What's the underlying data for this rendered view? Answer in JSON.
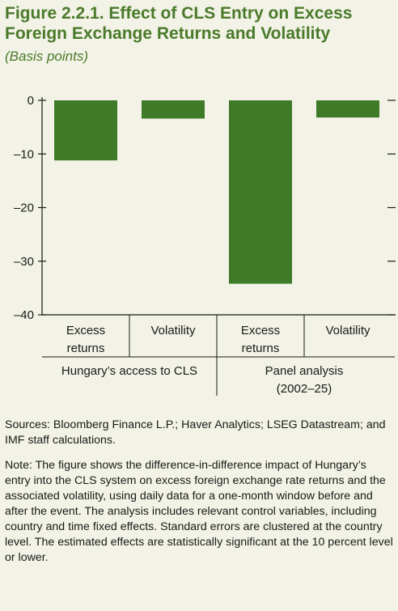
{
  "figure": {
    "title": "Figure 2.2.1. Effect of CLS Entry on Excess Foreign Exchange Returns and Volatility",
    "subtitle": "(Basis points)"
  },
  "chart_data": {
    "type": "bar",
    "categories": [
      "Excess returns",
      "Volatility",
      "Excess returns",
      "Volatility"
    ],
    "groups": [
      {
        "label": "Hungary’s access to CLS",
        "categories": [
          0,
          1
        ]
      },
      {
        "label": "Panel analysis (2002–25)",
        "categories": [
          2,
          3
        ]
      }
    ],
    "values": [
      -11.2,
      -3.4,
      -34.2,
      -3.2
    ],
    "ylim": [
      -40,
      0
    ],
    "yticks": [
      0,
      -10,
      -20,
      -30,
      -40
    ],
    "ytick_labels": [
      "0",
      "–10",
      "–20",
      "–30",
      "–40"
    ],
    "bar_color": "#3e7a27"
  },
  "notes": {
    "sources": "Sources: Bloomberg Finance L.P.; Haver Analytics; LSEG Datastream; and IMF staff calculations.",
    "note": "Note: The figure shows the difference-in-difference impact of Hungary’s entry into the CLS system on excess foreign exchange rate returns and the associated volatility, using daily data for a one-month window before and after the event. The analysis includes relevant control variables, including country and time fixed effects. Standard errors are clustered at the country level. The estimated effects are statistically significant at the 10 percent level or lower."
  }
}
